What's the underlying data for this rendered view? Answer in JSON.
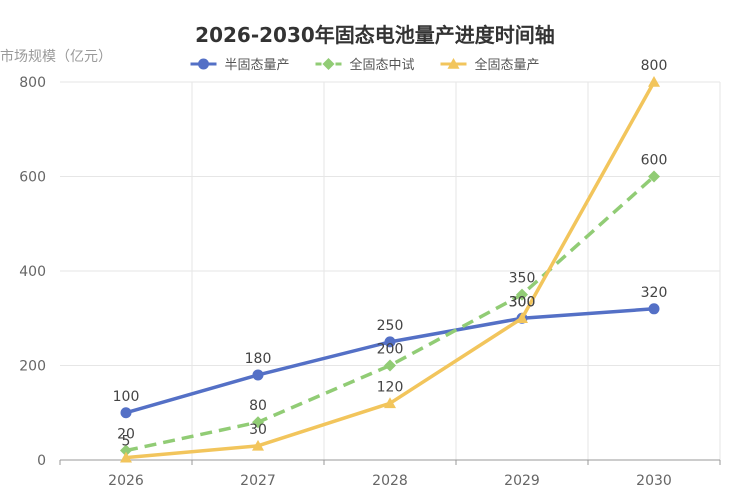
{
  "chart_data": {
    "type": "line",
    "title": "2026-2030年固态电池量产进度时间轴",
    "ylabel": "市场规模（亿元）",
    "xlabel": "",
    "categories": [
      "2026",
      "2027",
      "2028",
      "2029",
      "2030"
    ],
    "ylim": [
      0,
      800
    ],
    "yticks": [
      0,
      200,
      400,
      600,
      800
    ],
    "grid": true,
    "legend_position": "top-center",
    "series": [
      {
        "name": "半固态量产",
        "values": [
          100,
          180,
          250,
          300,
          320
        ],
        "color": "#5470c6",
        "marker": "circle",
        "dashed": false
      },
      {
        "name": "全固态中试",
        "values": [
          20,
          80,
          200,
          350,
          600
        ],
        "color": "#91cc75",
        "marker": "diamond",
        "dashed": true
      },
      {
        "name": "全固态量产",
        "values": [
          5,
          30,
          120,
          300,
          800
        ],
        "color": "#f2c55c",
        "marker": "triangle",
        "dashed": false
      }
    ]
  }
}
